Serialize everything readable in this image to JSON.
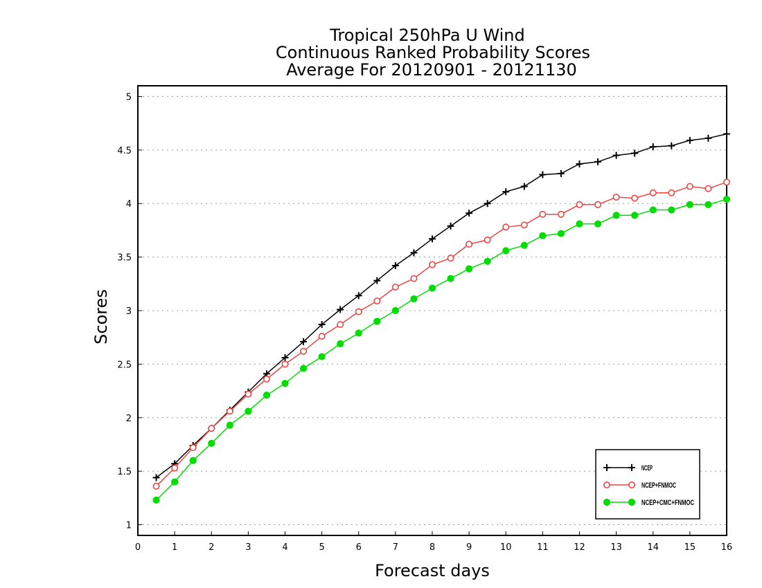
{
  "chart_data": {
    "type": "line",
    "title_lines": [
      "Tropical 250hPa U Wind",
      "Continuous Ranked Probability Scores",
      "Average For 20120901 - 20121130"
    ],
    "xlabel": "Forecast days",
    "ylabel": "Scores",
    "xlim": [
      0,
      16
    ],
    "ylim": [
      0.9,
      5.1
    ],
    "x_ticks": [
      0,
      1,
      2,
      3,
      4,
      5,
      6,
      7,
      8,
      9,
      10,
      11,
      12,
      13,
      14,
      15,
      16
    ],
    "y_ticks": [
      1,
      1.5,
      2,
      2.5,
      3,
      3.5,
      4,
      4.5,
      5
    ],
    "y_tick_labels": [
      "1",
      "1.5",
      "2",
      "2.5",
      "3",
      "3.5",
      "4",
      "4.5",
      "5"
    ],
    "grid": "horizontal dotted",
    "legend_position": "bottom-right",
    "x": [
      0.5,
      1,
      1.5,
      2,
      2.5,
      3,
      3.5,
      4,
      4.5,
      5,
      5.5,
      6,
      6.5,
      7,
      7.5,
      8,
      8.5,
      9,
      9.5,
      10,
      10.5,
      11,
      11.5,
      12,
      12.5,
      13,
      13.5,
      14,
      14.5,
      15,
      15.5,
      16
    ],
    "series": [
      {
        "name": "NCEP",
        "color": "#000000",
        "marker": "plus",
        "values": [
          1.44,
          1.57,
          1.74,
          1.9,
          2.07,
          2.24,
          2.41,
          2.56,
          2.71,
          2.87,
          3.01,
          3.14,
          3.28,
          3.42,
          3.54,
          3.67,
          3.79,
          3.91,
          4.0,
          4.11,
          4.16,
          4.27,
          4.28,
          4.37,
          4.39,
          4.45,
          4.47,
          4.53,
          4.54,
          4.59,
          4.61,
          4.65
        ]
      },
      {
        "name": "NCEP+FNMOC",
        "color": "#ee4444",
        "marker": "open-circle",
        "values": [
          1.36,
          1.53,
          1.72,
          1.9,
          2.06,
          2.22,
          2.36,
          2.5,
          2.62,
          2.76,
          2.87,
          2.99,
          3.09,
          3.22,
          3.3,
          3.43,
          3.49,
          3.62,
          3.66,
          3.78,
          3.8,
          3.9,
          3.9,
          3.99,
          3.99,
          4.06,
          4.05,
          4.1,
          4.1,
          4.16,
          4.14,
          4.2
        ]
      },
      {
        "name": "NCEP+CMC+FNMOC",
        "color": "#00dd00",
        "marker": "filled-circle",
        "values": [
          1.23,
          1.4,
          1.6,
          1.76,
          1.93,
          2.06,
          2.21,
          2.32,
          2.46,
          2.57,
          2.69,
          2.79,
          2.9,
          3.0,
          3.11,
          3.21,
          3.3,
          3.39,
          3.46,
          3.56,
          3.61,
          3.7,
          3.72,
          3.81,
          3.81,
          3.89,
          3.89,
          3.94,
          3.94,
          3.99,
          3.99,
          4.04
        ]
      }
    ]
  }
}
